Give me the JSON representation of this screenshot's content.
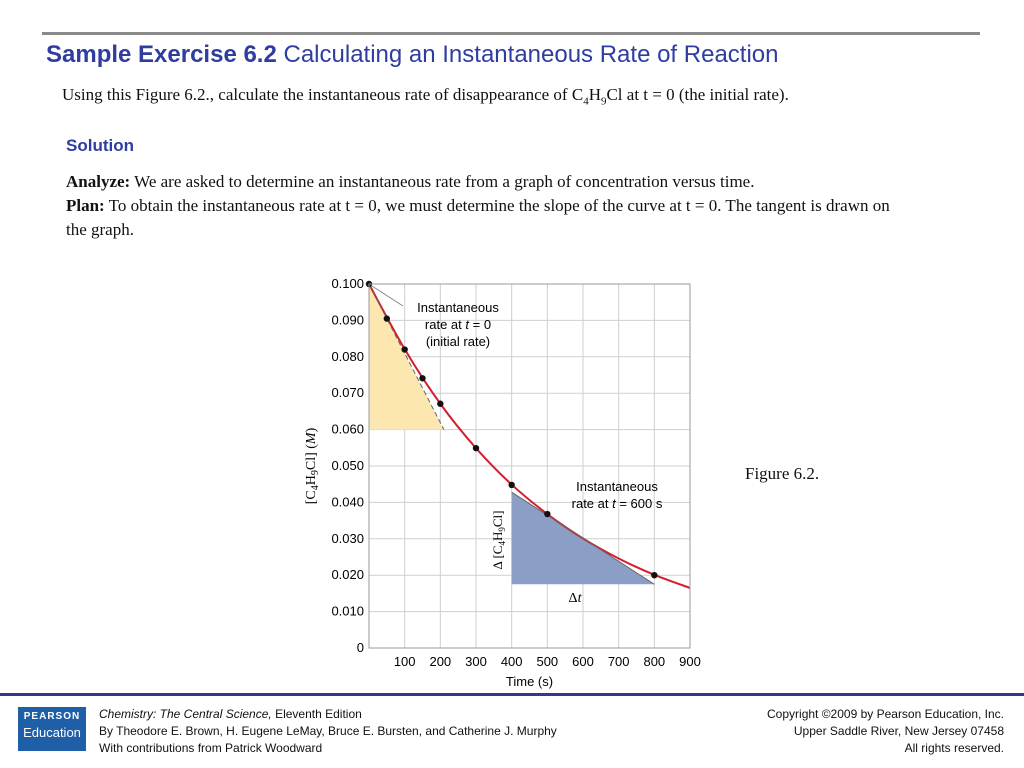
{
  "slide": {
    "title_bold": "Sample Exercise 6.2",
    "title_rest": "Calculating an Instantaneous Rate of Reaction",
    "question": {
      "pre": "Using this Figure  6.2., calculate the instantaneous rate of disappearance of C",
      "sub1": "4",
      "mid": "H",
      "sub2": "9",
      "post": "Cl at t = 0 (the initial rate)."
    },
    "solution_heading": "Solution",
    "analyze_label": "Analyze:",
    "analyze_text": " We are asked to determine an instantaneous rate from a graph of concentration versus time.",
    "plan_label": "Plan:",
    "plan_text": " To obtain the instantaneous rate at t = 0, we must determine the slope of the curve at t = 0. The tangent is drawn on the graph.",
    "figure_caption": "Figure 6.2."
  },
  "footer": {
    "logo_line1": "PEARSON",
    "logo_line2": "Education",
    "book_title": "Chemistry: The Central Science,",
    "edition": " Eleventh Edition",
    "authors": "By Theodore E. Brown, H. Eugene LeMay, Bruce E. Bursten, and Catherine J. Murphy",
    "contributions": "With contributions from Patrick Woodward",
    "copyright": "Copyright ©2009 by Pearson Education, Inc.",
    "address": "Upper Saddle River, New Jersey 07458",
    "rights": "All rights reserved."
  },
  "chart_data": {
    "type": "line",
    "xlabel": "Time (s)",
    "ylabel": "[C4H9Cl] (M)",
    "xlim": [
      0,
      900
    ],
    "ylim": [
      0,
      0.1
    ],
    "x_ticks": [
      "100",
      "200",
      "300",
      "400",
      "500",
      "600",
      "700",
      "800",
      "900"
    ],
    "y_ticks": [
      "0",
      "0.010",
      "0.020",
      "0.030",
      "0.040",
      "0.050",
      "0.060",
      "0.070",
      "0.080",
      "0.090",
      "0.100"
    ],
    "grid": true,
    "points": {
      "x": [
        0,
        50,
        100,
        150,
        200,
        300,
        400,
        500,
        800
      ],
      "y": [
        0.1,
        0.0905,
        0.082,
        0.0741,
        0.0671,
        0.0549,
        0.0448,
        0.0368,
        0.02
      ]
    },
    "curve_points": {
      "x": [
        0,
        100,
        200,
        300,
        400,
        500,
        600,
        700,
        800,
        900
      ],
      "y": [
        0.1,
        0.0821,
        0.0671,
        0.0549,
        0.0449,
        0.0368,
        0.0301,
        0.0246,
        0.0201,
        0.0165
      ]
    },
    "initial_tangent": {
      "x": [
        0,
        210
      ],
      "y": [
        0.1,
        0.06
      ]
    },
    "t600_tangent": {
      "x": [
        400,
        800
      ],
      "y": [
        0.0428,
        0.0175
      ]
    },
    "annotations": {
      "t0_line1": "Instantaneous",
      "t0_line2_pre": "rate at ",
      "t0_line2_var": "t",
      "t0_line2_post": " = 0",
      "t0_line3": "(initial rate)",
      "t600_line1": "Instantaneous",
      "t600_line2_pre": "rate at ",
      "t600_line2_var": "t",
      "t600_line2_post": " = 600 s",
      "delta_conc": "Δ [C4H9Cl]",
      "delta_t_sym": "Δ",
      "delta_t_var": "t"
    },
    "colors": {
      "curve": "#d21f2e",
      "initial_triangle": "#fce7b0",
      "t600_triangle": "#8a9ec6",
      "grid": "#cfcfcf",
      "points": "#111111"
    }
  }
}
